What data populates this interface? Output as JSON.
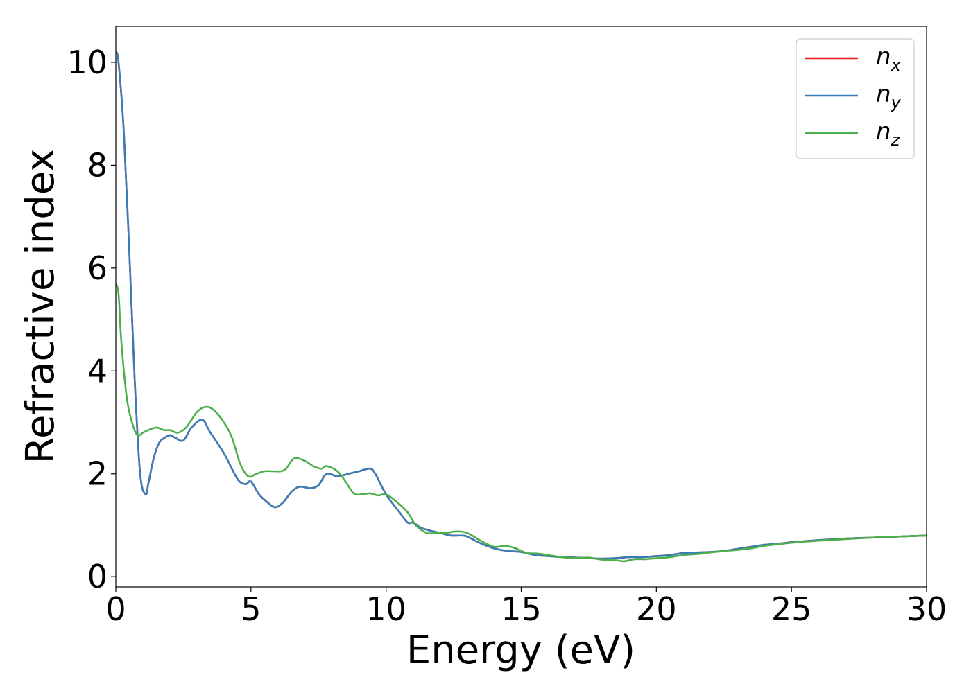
{
  "chart_data": {
    "type": "line",
    "title": "",
    "xlabel": "Energy (eV)",
    "ylabel": "Refractive index",
    "xlim": [
      0,
      30
    ],
    "ylim": [
      -0.2,
      10.7
    ],
    "xticks": [
      0,
      5,
      10,
      15,
      20,
      25,
      30
    ],
    "yticks": [
      0,
      2,
      4,
      6,
      8,
      10
    ],
    "grid": false,
    "legend_position": "top-right",
    "series": [
      {
        "name": "n",
        "subscript": "x",
        "color": "#e41a1c",
        "x": [
          0,
          0.1,
          0.3,
          0.5,
          0.7,
          0.9,
          1.1,
          1.2,
          1.4,
          1.6,
          1.8,
          2.0,
          2.2,
          2.5,
          2.8,
          3.2,
          3.5,
          4.0,
          4.5,
          4.8,
          5.0,
          5.3,
          5.6,
          5.9,
          6.2,
          6.5,
          6.8,
          7.2,
          7.5,
          7.8,
          8.2,
          8.6,
          9.0,
          9.4,
          9.6,
          10.0,
          10.5,
          10.8,
          11.0,
          11.3,
          11.6,
          12.0,
          12.4,
          12.8,
          13.0,
          13.5,
          14.0,
          14.5,
          15.0,
          15.5,
          16.0,
          16.5,
          17.0,
          17.5,
          18.0,
          18.5,
          19.0,
          19.5,
          20.0,
          20.5,
          21.0,
          21.5,
          22.0,
          22.5,
          23.0,
          23.5,
          24.0,
          24.5,
          25.0,
          25.5,
          26.0,
          27.0,
          28.0,
          29.0,
          30.0
        ],
        "y": [
          10.2,
          10.0,
          8.6,
          6.3,
          3.8,
          2.0,
          1.6,
          1.8,
          2.3,
          2.6,
          2.7,
          2.75,
          2.7,
          2.65,
          2.9,
          3.05,
          2.8,
          2.4,
          1.9,
          1.8,
          1.85,
          1.6,
          1.45,
          1.35,
          1.45,
          1.65,
          1.75,
          1.72,
          1.78,
          2.0,
          1.95,
          2.0,
          2.05,
          2.1,
          2.0,
          1.6,
          1.25,
          1.05,
          1.05,
          0.95,
          0.9,
          0.85,
          0.8,
          0.8,
          0.78,
          0.65,
          0.55,
          0.5,
          0.48,
          0.42,
          0.4,
          0.38,
          0.37,
          0.36,
          0.35,
          0.36,
          0.38,
          0.38,
          0.4,
          0.42,
          0.46,
          0.47,
          0.48,
          0.5,
          0.54,
          0.58,
          0.62,
          0.64,
          0.67,
          0.69,
          0.71,
          0.74,
          0.76,
          0.78,
          0.8
        ]
      },
      {
        "name": "n",
        "subscript": "y",
        "color": "#377eb8",
        "x": [
          0,
          0.1,
          0.3,
          0.5,
          0.7,
          0.9,
          1.1,
          1.2,
          1.4,
          1.6,
          1.8,
          2.0,
          2.2,
          2.5,
          2.8,
          3.2,
          3.5,
          4.0,
          4.5,
          4.8,
          5.0,
          5.3,
          5.6,
          5.9,
          6.2,
          6.5,
          6.8,
          7.2,
          7.5,
          7.8,
          8.2,
          8.6,
          9.0,
          9.4,
          9.6,
          10.0,
          10.5,
          10.8,
          11.0,
          11.3,
          11.6,
          12.0,
          12.4,
          12.8,
          13.0,
          13.5,
          14.0,
          14.5,
          15.0,
          15.5,
          16.0,
          16.5,
          17.0,
          17.5,
          18.0,
          18.5,
          19.0,
          19.5,
          20.0,
          20.5,
          21.0,
          21.5,
          22.0,
          22.5,
          23.0,
          23.5,
          24.0,
          24.5,
          25.0,
          25.5,
          26.0,
          27.0,
          28.0,
          29.0,
          30.0
        ],
        "y": [
          10.2,
          10.0,
          8.6,
          6.3,
          3.8,
          2.0,
          1.6,
          1.8,
          2.3,
          2.6,
          2.7,
          2.75,
          2.7,
          2.65,
          2.9,
          3.05,
          2.8,
          2.4,
          1.9,
          1.8,
          1.85,
          1.6,
          1.45,
          1.35,
          1.45,
          1.65,
          1.75,
          1.72,
          1.78,
          2.0,
          1.95,
          2.0,
          2.05,
          2.1,
          2.0,
          1.6,
          1.25,
          1.05,
          1.05,
          0.95,
          0.9,
          0.85,
          0.8,
          0.8,
          0.78,
          0.65,
          0.55,
          0.5,
          0.48,
          0.42,
          0.4,
          0.38,
          0.37,
          0.36,
          0.35,
          0.36,
          0.38,
          0.38,
          0.4,
          0.42,
          0.46,
          0.47,
          0.48,
          0.5,
          0.54,
          0.58,
          0.62,
          0.64,
          0.67,
          0.69,
          0.71,
          0.74,
          0.76,
          0.78,
          0.8
        ]
      },
      {
        "name": "n",
        "subscript": "z",
        "color": "#4daf4a",
        "x": [
          0,
          0.1,
          0.2,
          0.4,
          0.6,
          0.8,
          1.0,
          1.2,
          1.5,
          1.8,
          2.0,
          2.3,
          2.6,
          3.0,
          3.3,
          3.6,
          4.0,
          4.3,
          4.6,
          4.9,
          5.2,
          5.5,
          5.8,
          6.1,
          6.3,
          6.6,
          7.0,
          7.3,
          7.6,
          7.8,
          8.2,
          8.5,
          8.8,
          9.1,
          9.4,
          9.7,
          10.0,
          10.4,
          10.8,
          11.1,
          11.5,
          11.8,
          12.2,
          12.6,
          13.0,
          13.5,
          14.0,
          14.4,
          14.8,
          15.2,
          15.6,
          16.0,
          16.5,
          17.0,
          17.5,
          18.0,
          18.5,
          18.8,
          19.2,
          19.6,
          20.0,
          20.5,
          21.0,
          21.5,
          22.0,
          22.5,
          23.0,
          23.5,
          24.0,
          24.5,
          25.0,
          26.0,
          27.0,
          28.0,
          29.0,
          30.0
        ],
        "y": [
          5.7,
          5.5,
          4.6,
          3.5,
          3.0,
          2.75,
          2.8,
          2.85,
          2.9,
          2.85,
          2.85,
          2.8,
          2.9,
          3.2,
          3.3,
          3.25,
          3.0,
          2.7,
          2.2,
          1.95,
          2.0,
          2.05,
          2.05,
          2.05,
          2.1,
          2.3,
          2.25,
          2.15,
          2.1,
          2.15,
          2.05,
          1.85,
          1.62,
          1.6,
          1.62,
          1.58,
          1.6,
          1.45,
          1.25,
          1.0,
          0.85,
          0.85,
          0.85,
          0.88,
          0.85,
          0.7,
          0.58,
          0.6,
          0.55,
          0.46,
          0.45,
          0.42,
          0.38,
          0.36,
          0.37,
          0.33,
          0.32,
          0.3,
          0.34,
          0.34,
          0.36,
          0.38,
          0.42,
          0.44,
          0.47,
          0.5,
          0.52,
          0.55,
          0.6,
          0.63,
          0.66,
          0.7,
          0.73,
          0.76,
          0.78,
          0.8
        ]
      }
    ]
  }
}
